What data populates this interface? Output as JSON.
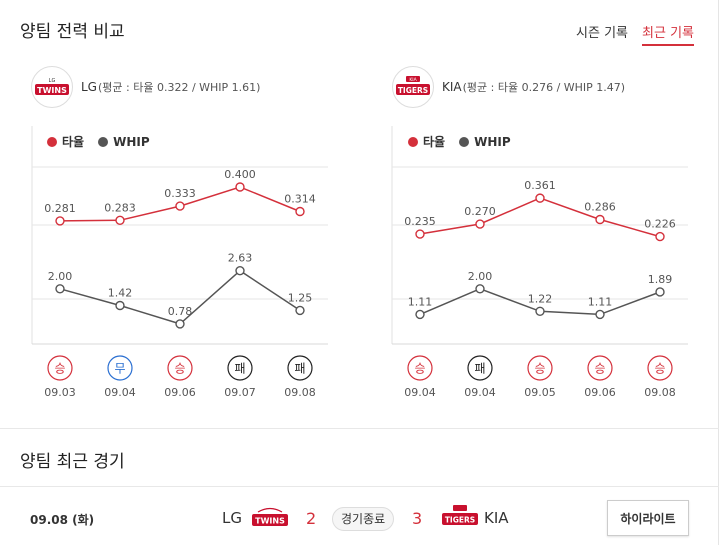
{
  "section_compare": {
    "title": "양팀 전력 비교",
    "tabs": [
      "시즌 기록",
      "최근 기록"
    ],
    "active_tab": 1
  },
  "legend": {
    "avg": "타율",
    "whip": "WHIP"
  },
  "colors": {
    "avg": "#d4303b",
    "whip": "#555555",
    "win": "#d4303b",
    "draw": "#2a6fd1",
    "loss": "#222222",
    "grid": "#e6e6e6"
  },
  "teams": [
    {
      "name": "LG",
      "stat_text": "(평균 : 타율 0.322 / WHIP 1.61)",
      "logo": {
        "text": "TWINS",
        "top_text": "LG"
      },
      "games": [
        {
          "date": "09.03",
          "avg": 0.281,
          "avg_label": "0.281",
          "whip": 2.0,
          "whip_label": "2.00",
          "result": "승",
          "type": "win"
        },
        {
          "date": "09.04",
          "avg": 0.283,
          "avg_label": "0.283",
          "whip": 1.42,
          "whip_label": "1.42",
          "result": "무",
          "type": "draw"
        },
        {
          "date": "09.06",
          "avg": 0.333,
          "avg_label": "0.333",
          "whip": 0.78,
          "whip_label": "0.78",
          "result": "승",
          "type": "win"
        },
        {
          "date": "09.07",
          "avg": 0.4,
          "avg_label": "0.400",
          "whip": 2.63,
          "whip_label": "2.63",
          "result": "패",
          "type": "loss"
        },
        {
          "date": "09.08",
          "avg": 0.314,
          "avg_label": "0.314",
          "whip": 1.25,
          "whip_label": "1.25",
          "result": "패",
          "type": "loss"
        }
      ]
    },
    {
      "name": "KIA",
      "stat_text": "(평균 : 타율 0.276 / WHIP 1.47)",
      "logo": {
        "text": "TIGERS",
        "top_text": "KIA"
      },
      "games": [
        {
          "date": "09.04",
          "avg": 0.235,
          "avg_label": "0.235",
          "whip": 1.11,
          "whip_label": "1.11",
          "result": "승",
          "type": "win"
        },
        {
          "date": "09.04",
          "avg": 0.27,
          "avg_label": "0.270",
          "whip": 2.0,
          "whip_label": "2.00",
          "result": "패",
          "type": "loss"
        },
        {
          "date": "09.05",
          "avg": 0.361,
          "avg_label": "0.361",
          "whip": 1.22,
          "whip_label": "1.22",
          "result": "승",
          "type": "win"
        },
        {
          "date": "09.06",
          "avg": 0.286,
          "avg_label": "0.286",
          "whip": 1.11,
          "whip_label": "1.11",
          "result": "승",
          "type": "win"
        },
        {
          "date": "09.08",
          "avg": 0.226,
          "avg_label": "0.226",
          "whip": 1.89,
          "whip_label": "1.89",
          "result": "승",
          "type": "win"
        }
      ]
    }
  ],
  "chart_data": [
    {
      "type": "line",
      "categories": [
        "09.03",
        "09.04",
        "09.06",
        "09.07",
        "09.08"
      ],
      "series": [
        {
          "name": "타율",
          "values": [
            0.281,
            0.283,
            0.333,
            0.4,
            0.314
          ]
        },
        {
          "name": "WHIP",
          "values": [
            2.0,
            1.42,
            0.78,
            2.63,
            1.25
          ]
        }
      ],
      "title": "LG(평균 : 타율 0.322 / WHIP 1.61)",
      "legend": "top-left"
    },
    {
      "type": "line",
      "categories": [
        "09.04",
        "09.04",
        "09.05",
        "09.06",
        "09.08"
      ],
      "series": [
        {
          "name": "타율",
          "values": [
            0.235,
            0.27,
            0.361,
            0.286,
            0.226
          ]
        },
        {
          "name": "WHIP",
          "values": [
            1.11,
            2.0,
            1.22,
            1.11,
            1.89
          ]
        }
      ],
      "title": "KIA(평균 : 타율 0.276 / WHIP 1.47)",
      "legend": "top-left"
    }
  ],
  "section_recent": {
    "title": "양팀 최근 경기"
  },
  "recent_game": {
    "date": "09.08 (화)",
    "home": "LG",
    "home_score": "2",
    "status": "경기종료",
    "away_score": "3",
    "away": "KIA",
    "highlight_label": "하이라이트"
  }
}
